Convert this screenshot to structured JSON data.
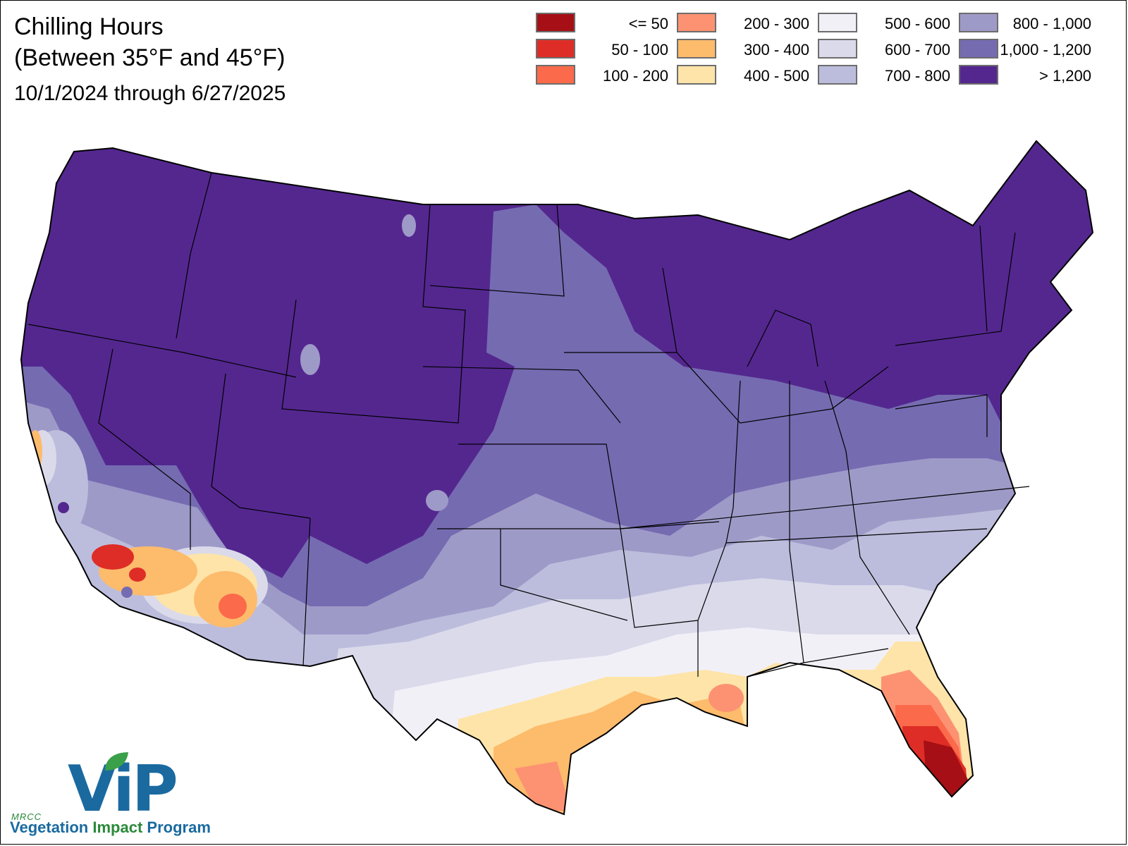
{
  "title_line1": "Chilling Hours",
  "title_line2": "(Between 35°F and 45°F)",
  "date_range": "10/1/2024 through 6/27/2025",
  "legend": [
    {
      "label": "<= 50",
      "color": "#a50f15"
    },
    {
      "label": "50 - 100",
      "color": "#de2d26"
    },
    {
      "label": "100 - 200",
      "color": "#fb6a4a"
    },
    {
      "label": "200 - 300",
      "color": "#fc9272"
    },
    {
      "label": "300 - 400",
      "color": "#fdbb6c"
    },
    {
      "label": "400 - 500",
      "color": "#fee4a8"
    },
    {
      "label": "500 - 600",
      "color": "#f2f0f7"
    },
    {
      "label": "600 - 700",
      "color": "#dadaeb"
    },
    {
      "label": "700 - 800",
      "color": "#bcbddc"
    },
    {
      "label": "800 - 1,000",
      "color": "#9e9ac8"
    },
    {
      "label": "1,000 - 1,200",
      "color": "#756bb1"
    },
    {
      "label": "> 1,200",
      "color": "#54278f"
    }
  ],
  "logo": {
    "org": "MRCC",
    "name": "ViP",
    "sub1": "Vegetation",
    "sub2": "Impact",
    "sub3": "Program",
    "leaf_icon": "leaf-icon"
  }
}
